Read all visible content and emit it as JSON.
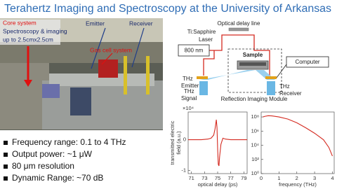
{
  "title": "Terahertz Imaging and Spectroscopy at the University of Arkansas",
  "photo": {
    "core_label": "Core system",
    "scope_label": [
      "Spectroscopy & imaging",
      "up to 2.5cmx2.5cm"
    ],
    "emitter": "Emitter",
    "receiver": "Receiver",
    "gas_cell": "Gas cell system"
  },
  "bullets": [
    "Frequency range: 0.1 to 4 THz",
    "Output power: ~1 μW",
    "80 μm resolution",
    "Dynamic Range: ~70 dB"
  ],
  "diagram": {
    "delay_line": "Optical delay line",
    "laser": [
      "Ti:Sapphire",
      "Laser"
    ],
    "wavelength": "800 nm",
    "sample": "Sample",
    "computer": "Computer",
    "emitter": [
      "THz",
      "Emitter"
    ],
    "receiver": [
      "THz",
      "Receiver"
    ],
    "signal": [
      "THz",
      "Signal"
    ],
    "module": "Reflection Imaging Module"
  },
  "chart_data": [
    {
      "type": "line",
      "y_label": [
        "transmitted electric",
        "field (a.u.)"
      ],
      "y_scale_label": "×10⁴",
      "x_label": "optical delay (ps)",
      "color": "#d42a20",
      "x": [
        70.5,
        71.5,
        72.5,
        73.5,
        74,
        74.4,
        74.6,
        74.8,
        74.9,
        75.0,
        75.1,
        75.2,
        75.3,
        75.5,
        75.8,
        76.2,
        77,
        78,
        79,
        79.5
      ],
      "series": [
        {
          "name": "waveform",
          "color": "#d42a20",
          "values": [
            0,
            0,
            0,
            0.02,
            0.05,
            0.15,
            0.35,
            0.65,
            0.4,
            -0.3,
            -0.8,
            -0.85,
            -0.55,
            -0.15,
            0.05,
            0.02,
            0,
            0,
            0,
            0
          ]
        }
      ],
      "xlim": [
        70.5,
        79.5
      ],
      "xticks": [
        71,
        73,
        75,
        77,
        79
      ],
      "ylim": [
        -1.1,
        0.9
      ],
      "yticks": [
        -1,
        0
      ]
    },
    {
      "type": "line",
      "log_y": true,
      "x_label": "frequency (THz)",
      "color": "#d42a20",
      "x": [
        0.1,
        0.2,
        0.4,
        0.6,
        0.8,
        1,
        1.5,
        2,
        2.5,
        3,
        3.5,
        3.8,
        4
      ],
      "series": [
        {
          "name": "spectrum",
          "color": "#d42a20",
          "values": [
            100000000,
            120000000,
            150000000,
            140000000,
            120000000,
            100000000,
            50000000,
            15000000,
            3000000,
            500000,
            60000,
            5000,
            300
          ]
        }
      ],
      "xlim": [
        0,
        4.1
      ],
      "xticks": [
        0,
        1,
        2,
        3,
        4
      ],
      "ylim": [
        1,
        500000000
      ],
      "yticks": [
        {
          "value": 1,
          "label": "10⁰"
        },
        {
          "value": 100,
          "label": "10²"
        },
        {
          "value": 10000,
          "label": "10⁴"
        },
        {
          "value": 1000000,
          "label": "10⁶"
        },
        {
          "value": 100000000,
          "label": "10⁸"
        }
      ]
    }
  ]
}
